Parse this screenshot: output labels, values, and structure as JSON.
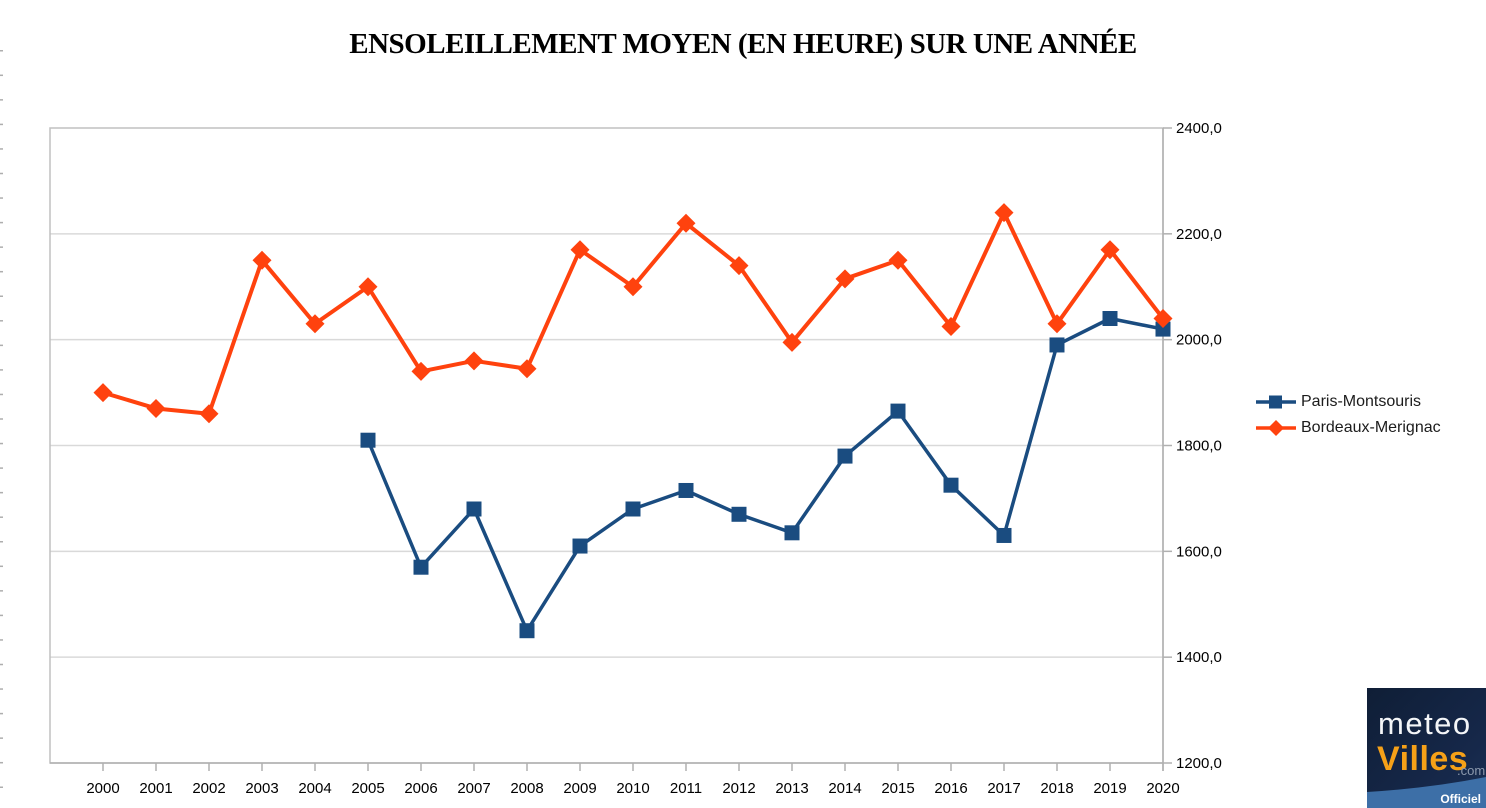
{
  "title": "ENSOLEILLEMENT MOYEN (EN HEURE) SUR UNE ANNÉE",
  "colors": {
    "paris_blue": "#1a4c80",
    "bordeaux_orange": "#ff420e",
    "gridline": "#d9d9d9",
    "plot_border": "#c0c0c0",
    "axis_line": "#b0b0b0",
    "tick_label": "#000000",
    "edge_dash": "#9a9a9a",
    "logo_bg": "#14243f",
    "logo_band": "#3d6fa7",
    "logo_orange": "#f6a118",
    "logo_gray": "#8c99ad"
  },
  "chart_data": {
    "type": "line",
    "title": "ENSOLEILLEMENT MOYEN (EN HEURE) SUR UNE ANNÉE",
    "categories": [
      "2000",
      "2001",
      "2002",
      "2003",
      "2004",
      "2005",
      "2006",
      "2007",
      "2008",
      "2009",
      "2010",
      "2011",
      "2012",
      "2013",
      "2014",
      "2015",
      "2016",
      "2017",
      "2018",
      "2019",
      "2020"
    ],
    "series": [
      {
        "name": "Paris-Montsouris",
        "color": "#1a4c80",
        "marker": "square",
        "values": [
          null,
          null,
          null,
          null,
          null,
          1810,
          1570,
          1680,
          1450,
          1610,
          1680,
          1715,
          1670,
          1635,
          1780,
          1865,
          1725,
          1630,
          1990,
          2040,
          2020
        ]
      },
      {
        "name": "Bordeaux-Merignac",
        "color": "#ff420e",
        "marker": "diamond",
        "values": [
          1900,
          1870,
          1860,
          2150,
          2030,
          2100,
          1940,
          1960,
          1945,
          2170,
          2100,
          2220,
          2140,
          1995,
          2115,
          2150,
          2025,
          2240,
          2030,
          2170,
          2040
        ]
      }
    ],
    "xlabel": "",
    "ylabel": "",
    "ylim": [
      1200,
      2400
    ],
    "y_tick_step": 200,
    "y_tick_labels": [
      "1200,0",
      "1400,0",
      "1600,0",
      "1800,0",
      "2000,0",
      "2200,0",
      "2400,0"
    ],
    "grid": "horizontal",
    "legend_position": "right",
    "y_axis_side": "right"
  },
  "logo": {
    "line1": "meteo",
    "line2": "Villes",
    "suffix": ".com",
    "badge": "Officiel"
  }
}
